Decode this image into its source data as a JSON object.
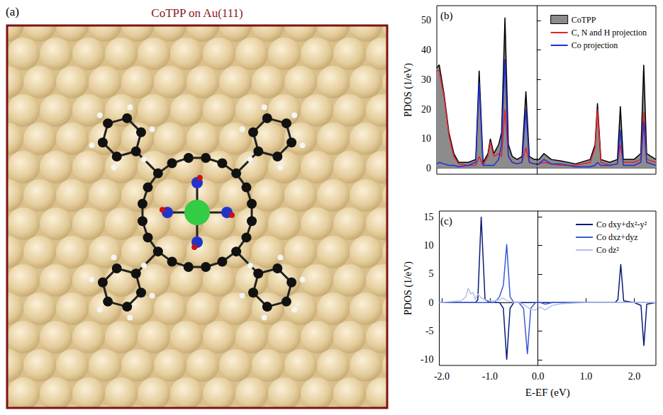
{
  "image_panel": {
    "label": "(a)",
    "title": "CoTPP on Au(111)"
  },
  "chart_data": [
    {
      "type": "line",
      "title": "(b)",
      "x": [
        -2.05,
        -2.0,
        -1.9,
        -1.8,
        -1.7,
        -1.6,
        -1.4,
        -1.25,
        -1.18,
        -1.1,
        -1.0,
        -0.95,
        -0.88,
        -0.78,
        -0.72,
        -0.65,
        -0.58,
        -0.5,
        -0.4,
        -0.3,
        -0.22,
        -0.15,
        -0.05,
        0.05,
        0.15,
        0.3,
        0.5,
        0.8,
        1.1,
        1.2,
        1.25,
        1.32,
        1.5,
        1.66,
        1.72,
        1.78,
        2.0,
        2.14,
        2.2,
        2.26,
        2.45
      ],
      "xlim": [
        -2.05,
        2.45
      ],
      "xticks": [
        {
          "value": -2,
          "label": "-2.0"
        },
        {
          "value": -1,
          "label": "-1.0"
        },
        {
          "value": 0,
          "label": "0.0"
        },
        {
          "value": 1,
          "label": "1.0"
        },
        {
          "value": 2,
          "label": "2.0"
        }
      ],
      "ylim": [
        -2,
        55
      ],
      "yticks": [
        0,
        10,
        20,
        30,
        40,
        50
      ],
      "y_label": "PDOS (1/eV)",
      "tick_labels": "y",
      "grid": false,
      "legend": "upper right",
      "vline": 0,
      "series": [
        {
          "name": "CoTPP",
          "type": "area",
          "color": "#000000",
          "values": [
            34,
            35,
            25,
            12,
            5,
            2,
            2,
            3,
            33,
            2,
            5,
            10,
            5,
            8,
            12,
            51,
            8,
            4,
            3,
            4,
            26,
            4,
            3,
            3,
            5,
            3,
            2.5,
            1.5,
            3,
            8,
            22,
            3,
            2,
            3,
            21,
            3,
            3,
            5,
            35,
            5,
            3
          ]
        },
        {
          "name": "C, N and H projection",
          "type": "line",
          "color": "#e8202a",
          "values": [
            33,
            33,
            24,
            11,
            4,
            1.5,
            1,
            1,
            4,
            1,
            4,
            9,
            4,
            5,
            4,
            20,
            4,
            2,
            1.5,
            2,
            7,
            2,
            1.5,
            1.5,
            2,
            1.5,
            1,
            1,
            2,
            7,
            20,
            2,
            1,
            1.5,
            8,
            2,
            2,
            3,
            19,
            3,
            2
          ]
        },
        {
          "name": "Co projection",
          "type": "line",
          "color": "#1f2fd8",
          "values": [
            1.5,
            2,
            1.5,
            1,
            1,
            0.5,
            1,
            2,
            29,
            1,
            1,
            1,
            1,
            3,
            8,
            37,
            4,
            2,
            1.5,
            2,
            20,
            2,
            1.5,
            1.5,
            3,
            1.5,
            1.5,
            0.5,
            0.5,
            1,
            2,
            1,
            1,
            1.5,
            13,
            1,
            1,
            2,
            16,
            2,
            1
          ]
        }
      ]
    },
    {
      "type": "line",
      "title": "(c)",
      "x": [
        -2.05,
        -1.6,
        -1.5,
        -1.45,
        -1.4,
        -1.35,
        -1.3,
        -1.25,
        -1.18,
        -1.1,
        -1.0,
        -0.9,
        -0.8,
        -0.72,
        -0.65,
        -0.58,
        -0.5,
        -0.4,
        -0.3,
        -0.22,
        -0.15,
        -0.05,
        0.05,
        0.15,
        0.3,
        0.5,
        1.0,
        1.6,
        1.66,
        1.72,
        1.78,
        2.0,
        2.14,
        2.2,
        2.26,
        2.45
      ],
      "xlim": [
        -2.05,
        2.45
      ],
      "xticks": [
        {
          "value": -2,
          "label": "-2.0"
        },
        {
          "value": -1,
          "label": "-1.0"
        },
        {
          "value": 0,
          "label": "0.0"
        },
        {
          "value": 1,
          "label": "1.0"
        },
        {
          "value": 2,
          "label": "2.0"
        }
      ],
      "ylim": [
        -11,
        16
      ],
      "yticks": [
        -10,
        -5,
        0,
        5,
        10,
        15
      ],
      "x_label": "E-EF (eV)",
      "y_label": "PDOS (1/eV)",
      "grid": false,
      "legend": "upper right",
      "vline": 0,
      "series": [
        {
          "name": "Co dxy+dx²-y²",
          "type": "line",
          "color": "#0b1a78",
          "values": [
            0,
            0,
            0,
            0,
            0,
            0,
            0,
            0.5,
            15,
            0.5,
            0,
            0,
            0,
            -1,
            -10,
            -1,
            0,
            0,
            0,
            0,
            0,
            0,
            0,
            0,
            0,
            0,
            0,
            0,
            0.5,
            6.7,
            0.3,
            0,
            -0.5,
            -7.6,
            -0.3,
            0
          ]
        },
        {
          "name": "Co dxz+dyz",
          "type": "line",
          "color": "#3a5ad8",
          "values": [
            0,
            0,
            0,
            0,
            0,
            0,
            0,
            0,
            0,
            0,
            0,
            0,
            1,
            3,
            10.2,
            1,
            0,
            0,
            -1,
            -9,
            -1,
            0,
            0,
            -0.3,
            0,
            0,
            0,
            0,
            0,
            0,
            0,
            0,
            0,
            0,
            0,
            0
          ]
        },
        {
          "name": "Co dz²",
          "type": "line",
          "color": "#b3bfe6",
          "values": [
            0,
            0.3,
            1,
            2.5,
            1.5,
            1.8,
            0.5,
            1.5,
            0.8,
            0.5,
            0.3,
            0.3,
            0.5,
            0.8,
            0.3,
            0.2,
            0,
            0,
            -0.3,
            -0.8,
            -1.2,
            -1.3,
            -0.8,
            -1.3,
            -0.5,
            -0.2,
            0,
            0,
            0,
            0,
            0,
            0,
            0,
            0,
            0,
            0
          ]
        }
      ]
    }
  ]
}
